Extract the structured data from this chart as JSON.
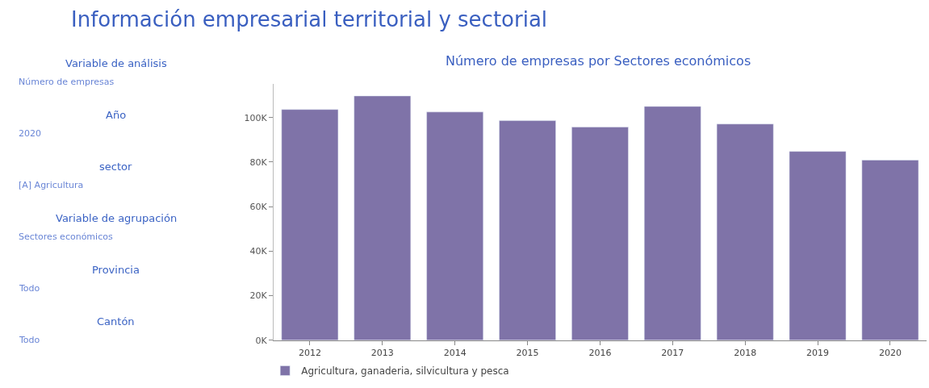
{
  "chart_data": [
    {
      "type": "other",
      "title": "Información empresarial territorial y sectorial",
      "annotations": [
        "Variable de análisis",
        "Número de empresas",
        "Año",
        "2020",
        "sector",
        "[A] Agricultura",
        "Variable de agrupación",
        "Sectores económicos",
        "Provincia",
        "Todo",
        "Cantón",
        "Todo"
      ]
    },
    {
      "type": "bar",
      "title": "Número de empresas por Sectores económicos",
      "categories": [
        "2012",
        "2013",
        "2014",
        "2015",
        "2016",
        "2017",
        "2018",
        "2019",
        "2020"
      ],
      "series": [
        {
          "name": "Agricultura, ganaderia, silvicultura y pesca",
          "color": "#7f73a8",
          "values": [
            103600,
            109700,
            102500,
            98600,
            95700,
            105000,
            97100,
            84800,
            80900
          ]
        }
      ],
      "ylim": [
        0,
        115000
      ],
      "yticks": [
        {
          "value": 0,
          "label": "0K"
        },
        {
          "value": 20000,
          "label": "20K"
        },
        {
          "value": 40000,
          "label": "40K"
        },
        {
          "value": 60000,
          "label": "60K"
        },
        {
          "value": 80000,
          "label": "80K"
        },
        {
          "value": 100000,
          "label": "100K"
        }
      ],
      "legend": "bottom left"
    }
  ]
}
